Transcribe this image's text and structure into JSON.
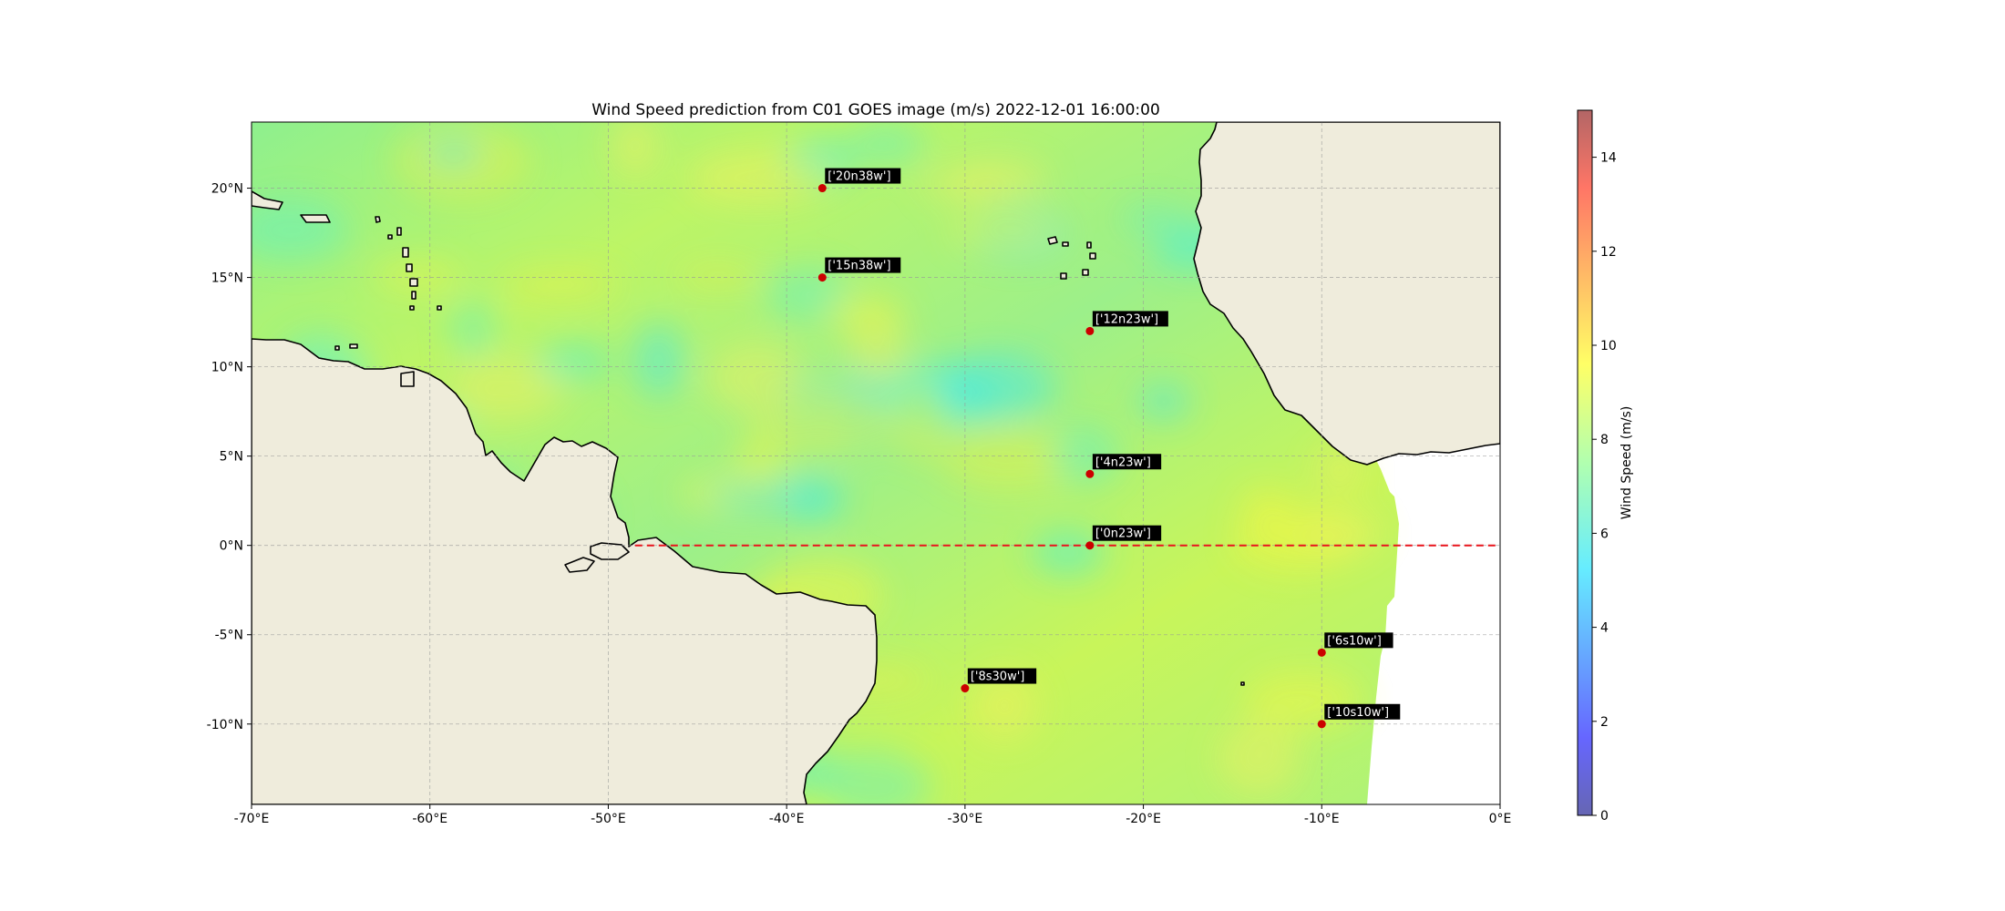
{
  "title": "Wind Speed prediction from C01 GOES image (m/s) 2022-12-01 16:00:00",
  "map": {
    "lon_range": [
      -70,
      0
    ],
    "lat_range": [
      -14.5,
      23.7
    ],
    "lon_ticks": [
      {
        "value": -70,
        "label": "-70°E"
      },
      {
        "value": -60,
        "label": "-60°E"
      },
      {
        "value": -50,
        "label": "-50°E"
      },
      {
        "value": -40,
        "label": "-40°E"
      },
      {
        "value": -30,
        "label": "-30°E"
      },
      {
        "value": -20,
        "label": "-20°E"
      },
      {
        "value": -10,
        "label": "-10°E"
      },
      {
        "value": 0,
        "label": "0°E"
      }
    ],
    "lat_ticks": [
      {
        "value": 20,
        "label": "20°N"
      },
      {
        "value": 15,
        "label": "15°N"
      },
      {
        "value": 10,
        "label": "10°N"
      },
      {
        "value": 5,
        "label": "5°N"
      },
      {
        "value": 0,
        "label": "0°N"
      },
      {
        "value": -5,
        "label": "-5°N"
      },
      {
        "value": -10,
        "label": "-10°N"
      }
    ],
    "gridlines": "dashed",
    "equator_line": {
      "lat": 0,
      "color": "#e8141c",
      "style": "dashed"
    },
    "land_color": "#efecdc",
    "coastline_color": "#000000",
    "data_extent_east": -6
  },
  "buoys": [
    {
      "label": "['20n38w']",
      "lon": -38,
      "lat": 20
    },
    {
      "label": "['15n38w']",
      "lon": -38,
      "lat": 15
    },
    {
      "label": "['12n23w']",
      "lon": -23,
      "lat": 12
    },
    {
      "label": "['4n23w']",
      "lon": -23,
      "lat": 4
    },
    {
      "label": "['0n23w']",
      "lon": -23,
      "lat": 0
    },
    {
      "label": "['6s10w']",
      "lon": -10,
      "lat": -6
    },
    {
      "label": "['8s30w']",
      "lon": -30,
      "lat": -8
    },
    {
      "label": "['10s10w']",
      "lon": -10,
      "lat": -10
    }
  ],
  "buoy_marker_color": "#cc0000",
  "colorbar": {
    "label": "Wind Speed (m/s)",
    "min": 0,
    "max": 15,
    "ticks": [
      {
        "value": 0,
        "label": "0"
      },
      {
        "value": 2,
        "label": "2"
      },
      {
        "value": 4,
        "label": "4"
      },
      {
        "value": 6,
        "label": "6"
      },
      {
        "value": 8,
        "label": "8"
      },
      {
        "value": 10,
        "label": "10"
      },
      {
        "value": 12,
        "label": "12"
      },
      {
        "value": 14,
        "label": "14"
      }
    ],
    "colormap": "jet",
    "alpha": 0.6
  }
}
